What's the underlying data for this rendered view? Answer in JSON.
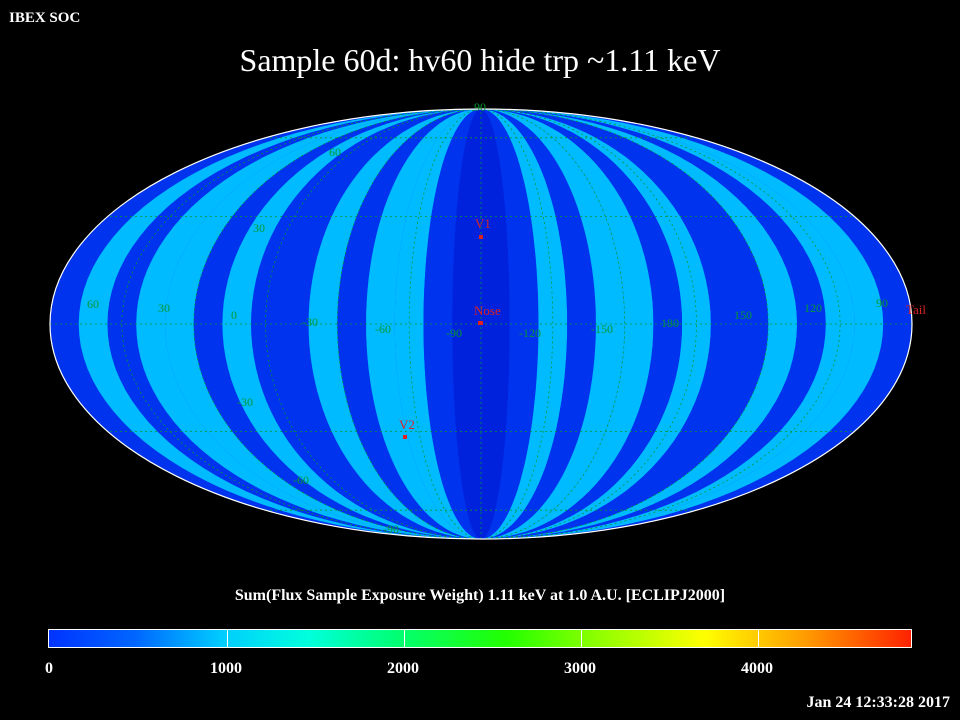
{
  "header": {
    "corner_label": "IBEX SOC",
    "title": "Sample 60d: hv60 hide trp ~1.11 keV"
  },
  "map": {
    "projection": "Mollweide",
    "grid_labels_longitude": [
      "60",
      "30",
      "0",
      "-30",
      "-60",
      "-90",
      "-120",
      "-150",
      "180",
      "150",
      "120",
      "90"
    ],
    "grid_labels_latitude": [
      "90",
      "60",
      "30",
      "-30",
      "-60",
      "-90"
    ],
    "markers": [
      {
        "label": "V1",
        "color": "#dd2222"
      },
      {
        "label": "Nose",
        "color": "#dd2222"
      },
      {
        "label": "V2",
        "color": "#dd2222"
      },
      {
        "label": "Tail",
        "color": "#dd2222"
      }
    ],
    "grid_color": "#009933",
    "outline_color": "#ffffff"
  },
  "colorbar": {
    "caption": "Sum(Flux Sample Exposure Weight)  1.11 keV at 1.0 A.U. [ECLIPJ2000]",
    "ticks": [
      "0",
      "1000",
      "2000",
      "3000",
      "4000"
    ],
    "range": [
      0,
      4900
    ],
    "colors": [
      "#0033ff",
      "#0066ff",
      "#00ccff",
      "#00ffdd",
      "#00ff77",
      "#22ff00",
      "#88ff00",
      "#ffff00",
      "#ff9900",
      "#ff2200"
    ]
  },
  "footer": {
    "timestamp": "Jan 24 12:33:28 2017"
  }
}
